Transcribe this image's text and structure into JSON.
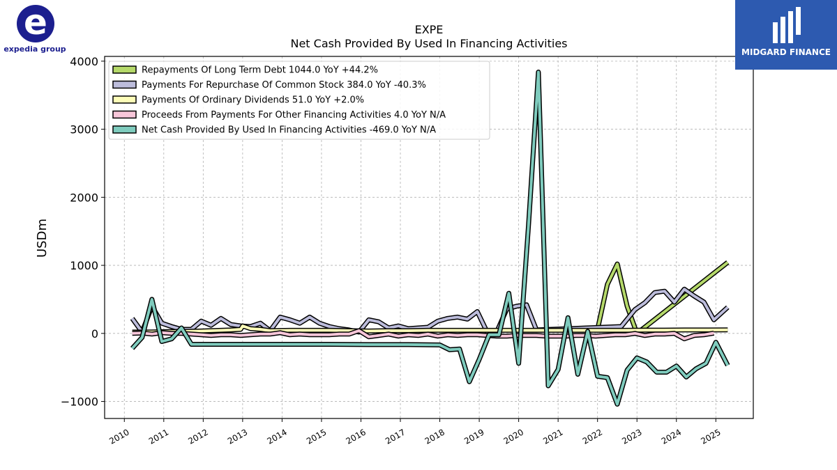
{
  "logos": {
    "left_text": "expedia group",
    "right_text": "MIDGARD FINANCE"
  },
  "chart_data": {
    "type": "line",
    "title": "EXPE",
    "subtitle": "Net Cash Provided By Used In Financing Activities",
    "ylabel": "USDm",
    "xlabel": "",
    "xlim": [
      2009.5,
      2025.95
    ],
    "ylim": [
      -1250,
      4070
    ],
    "yticks": [
      -1000,
      0,
      1000,
      2000,
      3000,
      4000
    ],
    "ytick_labels": [
      "−1000",
      "0",
      "1000",
      "2000",
      "3000",
      "4000"
    ],
    "xticks": [
      2010,
      2011,
      2012,
      2013,
      2014,
      2015,
      2016,
      2017,
      2018,
      2019,
      2020,
      2021,
      2022,
      2023,
      2024,
      2025
    ],
    "xtick_labels": [
      "2010",
      "2011",
      "2012",
      "2013",
      "2014",
      "2015",
      "2016",
      "2017",
      "2018",
      "2019",
      "2020",
      "2021",
      "2022",
      "2023",
      "2024",
      "2025"
    ],
    "grid": true,
    "legend_position": "top-left",
    "series": [
      {
        "name": "Repayments Of Long Term Debt  1044.0 YoY +44.2%",
        "color": "#b5d96a",
        "x": [
          2022.0,
          2022.25,
          2022.5,
          2022.75,
          2023.0,
          2025.3
        ],
        "y": [
          60,
          720,
          1020,
          400,
          0,
          1044
        ]
      },
      {
        "name": "Payments For Repurchase Of Common Stock  384.0 YoY -40.3%",
        "color": "#bcbcdb",
        "x": [
          2010.2,
          2010.45,
          2010.7,
          2010.95,
          2011.2,
          2011.45,
          2011.7,
          2011.95,
          2012.2,
          2012.45,
          2012.7,
          2012.95,
          2013.2,
          2013.45,
          2013.7,
          2013.95,
          2014.2,
          2014.45,
          2014.7,
          2014.95,
          2015.2,
          2015.45,
          2015.7,
          2015.95,
          2016.2,
          2016.45,
          2016.7,
          2016.95,
          2017.2,
          2017.45,
          2017.7,
          2017.95,
          2018.2,
          2018.45,
          2018.7,
          2018.95,
          2019.2,
          2019.45,
          2019.7,
          2019.95,
          2020.2,
          2020.45,
          2022.6,
          2022.95,
          2023.2,
          2023.45,
          2023.7,
          2023.95,
          2024.2,
          2024.45,
          2024.7,
          2024.95,
          2025.3
        ],
        "y": [
          220,
          20,
          400,
          150,
          100,
          60,
          60,
          180,
          120,
          220,
          130,
          110,
          100,
          150,
          40,
          240,
          200,
          150,
          240,
          150,
          100,
          70,
          50,
          20,
          200,
          170,
          80,
          110,
          70,
          80,
          90,
          180,
          220,
          240,
          210,
          320,
          20,
          30,
          360,
          400,
          420,
          50,
          100,
          350,
          450,
          600,
          620,
          460,
          650,
          550,
          460,
          200,
          384
        ]
      },
      {
        "name": "Payments Of Ordinary Dividends  51.0 YoY +2.0%",
        "color": "#fdfdb8",
        "x": [
          2010.2,
          2010.45,
          2010.7,
          2010.95,
          2011.2,
          2011.45,
          2011.7,
          2011.95,
          2012.2,
          2012.45,
          2012.7,
          2012.95,
          2013.0,
          2013.2,
          2013.45,
          2013.7,
          2014.2,
          2015.2,
          2016.2,
          2016.7,
          2017.2,
          2017.7,
          2018.2,
          2018.7,
          2019.2,
          2019.7,
          2020.2,
          2020.45,
          2020.7,
          2020.95,
          2021.2,
          2022.2,
          2022.7,
          2023.2,
          2023.7,
          2024.2,
          2024.7,
          2025.3
        ],
        "y": [
          20,
          20,
          22,
          25,
          28,
          30,
          32,
          35,
          40,
          45,
          50,
          60,
          110,
          70,
          60,
          40,
          45,
          45,
          35,
          40,
          40,
          45,
          45,
          45,
          45,
          45,
          45,
          45,
          45,
          45,
          45,
          45,
          45,
          48,
          48,
          50,
          50,
          51
        ]
      },
      {
        "name": "Proceeds From Payments For Other Financing Activities  4.0 YoY N/A",
        "color": "#f7c6d9",
        "x": [
          2010.2,
          2010.45,
          2010.7,
          2010.95,
          2011.2,
          2011.45,
          2011.7,
          2011.95,
          2012.2,
          2012.45,
          2012.7,
          2012.95,
          2013.2,
          2013.45,
          2013.7,
          2013.95,
          2014.2,
          2014.45,
          2014.7,
          2014.95,
          2015.2,
          2015.45,
          2015.7,
          2015.95,
          2016.2,
          2016.45,
          2016.7,
          2016.95,
          2017.2,
          2017.45,
          2017.7,
          2017.95,
          2018.2,
          2018.45,
          2018.7,
          2018.95,
          2019.2,
          2019.45,
          2019.7,
          2019.95,
          2020.2,
          2020.45,
          2020.7,
          2020.95,
          2021.2,
          2021.45,
          2021.7,
          2021.95,
          2022.2,
          2022.45,
          2022.7,
          2022.95,
          2023.2,
          2023.45,
          2023.7,
          2023.95,
          2024.2,
          2024.45,
          2024.7,
          2024.95
        ],
        "y": [
          0,
          5,
          -10,
          10,
          0,
          0,
          -10,
          -20,
          -30,
          -20,
          -20,
          -30,
          -20,
          -10,
          -10,
          10,
          -20,
          -10,
          -20,
          -20,
          -20,
          -10,
          -10,
          40,
          -50,
          -30,
          -10,
          -40,
          -20,
          -30,
          -10,
          -40,
          -20,
          -30,
          -20,
          -20,
          -30,
          -40,
          -40,
          -30,
          -30,
          -30,
          -40,
          -40,
          -40,
          -30,
          -30,
          -40,
          -30,
          -20,
          -20,
          0,
          -30,
          -10,
          -10,
          0,
          -80,
          -30,
          -20,
          4
        ]
      },
      {
        "name": "Net Cash Provided By Used In Financing Activities  -469.0 YoY N/A",
        "color": "#7fccbe",
        "x": [
          2010.2,
          2010.45,
          2010.7,
          2010.95,
          2011.2,
          2011.45,
          2011.7,
          2011.95,
          2012.2,
          2013.2,
          2014.2,
          2015.2,
          2016.2,
          2017.2,
          2018.0,
          2018.25,
          2018.5,
          2018.75,
          2019.0,
          2019.25,
          2019.5,
          2019.75,
          2020.0,
          2020.25,
          2020.5,
          2020.75,
          2021.0,
          2021.25,
          2021.5,
          2021.75,
          2022.0,
          2022.25,
          2022.5,
          2022.75,
          2023.0,
          2023.25,
          2023.5,
          2023.75,
          2024.0,
          2024.25,
          2024.5,
          2024.75,
          2025.0,
          2025.3
        ],
        "y": [
          -220,
          -60,
          500,
          -120,
          -80,
          80,
          -160,
          -160,
          -160,
          -160,
          -160,
          -160,
          -165,
          -165,
          -170,
          -240,
          -230,
          -710,
          -380,
          -20,
          -20,
          590,
          -440,
          1600,
          3840,
          -770,
          -530,
          230,
          -600,
          30,
          -630,
          -650,
          -1040,
          -540,
          -360,
          -420,
          -570,
          -570,
          -480,
          -640,
          -520,
          -440,
          -130,
          -469
        ]
      }
    ]
  }
}
